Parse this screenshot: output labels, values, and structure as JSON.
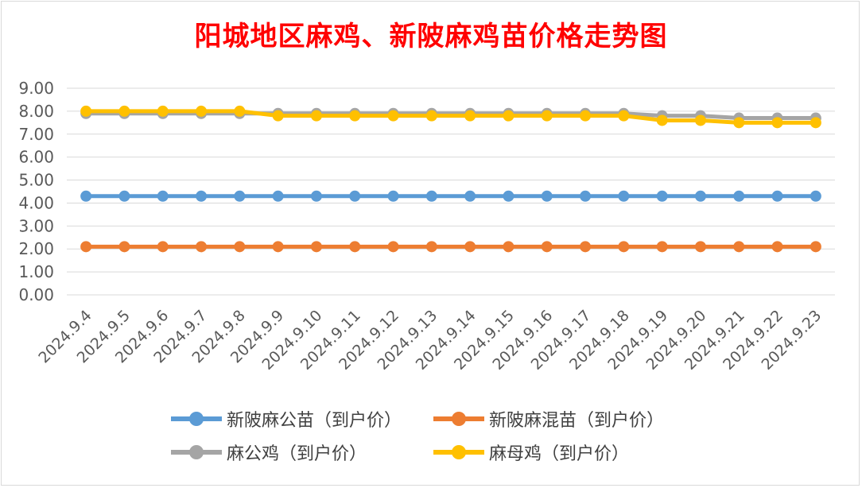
{
  "chart_data": {
    "type": "line",
    "title": "阳城地区麻鸡、新陂麻鸡苗价格走势图",
    "categories": [
      "2024.9.4",
      "2024.9.5",
      "2024.9.6",
      "2024.9.7",
      "2024.9.8",
      "2024.9.9",
      "2024.9.10",
      "2024.9.11",
      "2024.9.12",
      "2024.9.13",
      "2024.9.14",
      "2024.9.15",
      "2024.9.16",
      "2024.9.17",
      "2024.9.18",
      "2024.9.19",
      "2024.9.20",
      "2024.9.21",
      "2024.9.22",
      "2024.9.23"
    ],
    "ylim": [
      0,
      9
    ],
    "yticks": [
      "0.00",
      "1.00",
      "2.00",
      "3.00",
      "4.00",
      "5.00",
      "6.00",
      "7.00",
      "8.00",
      "9.00"
    ],
    "grid": true,
    "legend_position": "bottom",
    "series": [
      {
        "name": "新陂麻公苗（到户价）",
        "color": "#5b9bd5",
        "values": [
          4.3,
          4.3,
          4.3,
          4.3,
          4.3,
          4.3,
          4.3,
          4.3,
          4.3,
          4.3,
          4.3,
          4.3,
          4.3,
          4.3,
          4.3,
          4.3,
          4.3,
          4.3,
          4.3,
          4.3
        ]
      },
      {
        "name": "新陂麻混苗（到户价）",
        "color": "#ed7d31",
        "values": [
          2.1,
          2.1,
          2.1,
          2.1,
          2.1,
          2.1,
          2.1,
          2.1,
          2.1,
          2.1,
          2.1,
          2.1,
          2.1,
          2.1,
          2.1,
          2.1,
          2.1,
          2.1,
          2.1,
          2.1
        ]
      },
      {
        "name": "麻公鸡（到户价）",
        "color": "#a5a5a5",
        "values": [
          7.9,
          7.9,
          7.9,
          7.9,
          7.9,
          7.9,
          7.9,
          7.9,
          7.9,
          7.9,
          7.9,
          7.9,
          7.9,
          7.9,
          7.9,
          7.8,
          7.8,
          7.7,
          7.7,
          7.7
        ]
      },
      {
        "name": "麻母鸡（到户价）",
        "color": "#ffc000",
        "values": [
          8.0,
          8.0,
          8.0,
          8.0,
          8.0,
          7.8,
          7.8,
          7.8,
          7.8,
          7.8,
          7.8,
          7.8,
          7.8,
          7.8,
          7.8,
          7.6,
          7.6,
          7.5,
          7.5,
          7.5
        ]
      }
    ]
  }
}
